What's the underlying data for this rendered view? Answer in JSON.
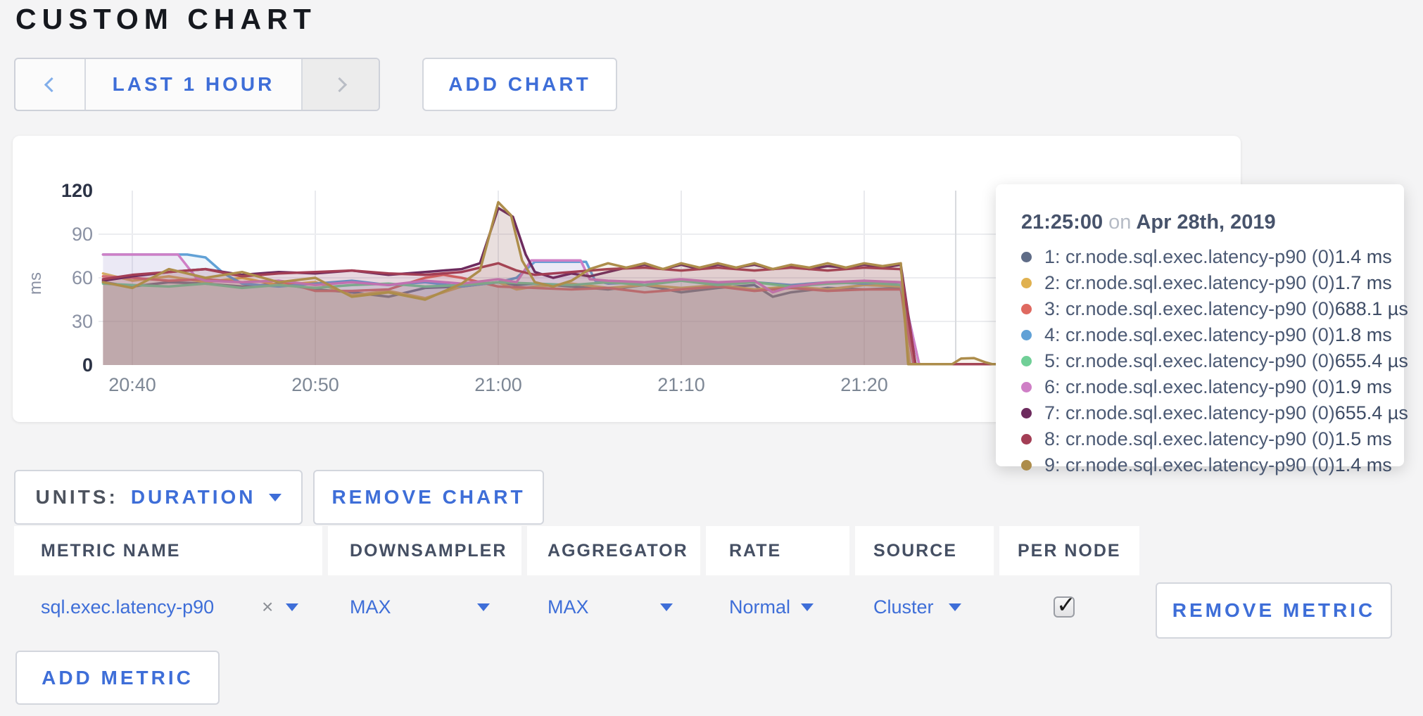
{
  "page": {
    "title": "CUSTOM CHART",
    "background": "#f4f4f5",
    "accent": "#3e6ed8"
  },
  "toolbar": {
    "range_label": "LAST 1 HOUR",
    "prev_icon": "chevron-left",
    "next_icon": "chevron-right",
    "add_chart_label": "ADD CHART"
  },
  "chart_data": {
    "type": "area",
    "title": "",
    "ylabel": "ms",
    "ylim": [
      0,
      120
    ],
    "yticks": [
      0,
      30,
      60,
      90,
      120
    ],
    "grid": true,
    "legend_position": "tooltip",
    "xticks": [
      {
        "min": 40,
        "label": "20:40"
      },
      {
        "min": 50,
        "label": "20:50"
      },
      {
        "min": 60,
        "label": "21:00"
      },
      {
        "min": 70,
        "label": "21:10"
      },
      {
        "min": 80,
        "label": "21:20"
      }
    ],
    "x_domain_minutes_after_2000": [
      38.4,
      100
    ],
    "crosshair_min": 85,
    "series": [
      {
        "name": "1: cr.node.sql.exec.latency-p90 (0)",
        "color": "#5f6c87",
        "points": [
          [
            38.4,
            57
          ],
          [
            40,
            54
          ],
          [
            42,
            57
          ],
          [
            44,
            56
          ],
          [
            46,
            54
          ],
          [
            48,
            56
          ],
          [
            50,
            52
          ],
          [
            52,
            50
          ],
          [
            54,
            47
          ],
          [
            56,
            53
          ],
          [
            58,
            54
          ],
          [
            60,
            57
          ],
          [
            61,
            55
          ],
          [
            62,
            56
          ],
          [
            64,
            54
          ],
          [
            66,
            52
          ],
          [
            68,
            55
          ],
          [
            70,
            50
          ],
          [
            72,
            53
          ],
          [
            74,
            55
          ],
          [
            75,
            47
          ],
          [
            76,
            50
          ],
          [
            78,
            53
          ],
          [
            80,
            52
          ],
          [
            82,
            53
          ],
          [
            82.7,
            0.6
          ],
          [
            88,
            0.6
          ]
        ]
      },
      {
        "name": "2: cr.node.sql.exec.latency-p90 (0)",
        "color": "#e0b150",
        "points": [
          [
            38.4,
            63
          ],
          [
            40,
            58
          ],
          [
            42,
            61
          ],
          [
            44,
            57
          ],
          [
            46,
            60
          ],
          [
            48,
            55
          ],
          [
            50,
            57
          ],
          [
            52,
            48
          ],
          [
            54,
            51
          ],
          [
            56,
            46
          ],
          [
            58,
            54
          ],
          [
            60,
            57
          ],
          [
            61,
            52
          ],
          [
            62,
            54
          ],
          [
            64,
            56
          ],
          [
            66,
            53
          ],
          [
            68,
            55
          ],
          [
            70,
            53
          ],
          [
            72,
            55
          ],
          [
            74,
            52
          ],
          [
            76,
            54
          ],
          [
            78,
            52
          ],
          [
            80,
            55
          ],
          [
            82,
            54
          ],
          [
            82.5,
            0.6
          ],
          [
            88,
            0.6
          ]
        ]
      },
      {
        "name": "3: cr.node.sql.exec.latency-p90 (0)",
        "color": "#df6960",
        "points": [
          [
            38.4,
            61
          ],
          [
            40,
            60
          ],
          [
            42,
            58
          ],
          [
            44,
            59
          ],
          [
            46,
            57
          ],
          [
            48,
            58
          ],
          [
            50,
            51
          ],
          [
            52,
            51
          ],
          [
            54,
            52
          ],
          [
            55,
            56
          ],
          [
            56,
            60
          ],
          [
            57,
            62
          ],
          [
            58,
            60
          ],
          [
            59,
            57
          ],
          [
            60,
            54
          ],
          [
            62,
            53
          ],
          [
            64,
            52
          ],
          [
            66,
            53
          ],
          [
            68,
            50
          ],
          [
            70,
            52
          ],
          [
            72,
            54
          ],
          [
            74,
            51
          ],
          [
            76,
            53
          ],
          [
            78,
            51
          ],
          [
            80,
            52
          ],
          [
            82,
            52
          ],
          [
            82.7,
            0.6
          ],
          [
            88,
            0.6
          ]
        ]
      },
      {
        "name": "4: cr.node.sql.exec.latency-p90 (0)",
        "color": "#61a1d6",
        "points": [
          [
            38.4,
            76
          ],
          [
            43,
            76
          ],
          [
            44,
            74
          ],
          [
            45,
            63
          ],
          [
            46,
            56
          ],
          [
            48,
            54
          ],
          [
            50,
            56
          ],
          [
            52,
            58
          ],
          [
            54,
            55
          ],
          [
            56,
            57
          ],
          [
            58,
            54
          ],
          [
            60,
            57
          ],
          [
            61,
            60
          ],
          [
            62,
            71
          ],
          [
            64.8,
            71
          ],
          [
            65.3,
            58
          ],
          [
            66,
            56
          ],
          [
            68,
            57
          ],
          [
            70,
            58
          ],
          [
            72,
            56
          ],
          [
            74,
            57
          ],
          [
            76,
            55
          ],
          [
            78,
            57
          ],
          [
            80,
            56
          ],
          [
            82,
            57
          ],
          [
            83,
            0.6
          ],
          [
            88,
            0.6
          ]
        ]
      },
      {
        "name": "5: cr.node.sql.exec.latency-p90 (0)",
        "color": "#70cf97",
        "points": [
          [
            38.4,
            56
          ],
          [
            40,
            55
          ],
          [
            42,
            54
          ],
          [
            44,
            56
          ],
          [
            46,
            53
          ],
          [
            48,
            55
          ],
          [
            50,
            53
          ],
          [
            52,
            55
          ],
          [
            54,
            56
          ],
          [
            56,
            54
          ],
          [
            58,
            55
          ],
          [
            60,
            57
          ],
          [
            62,
            56
          ],
          [
            64,
            55
          ],
          [
            66,
            57
          ],
          [
            68,
            55
          ],
          [
            70,
            58
          ],
          [
            72,
            55
          ],
          [
            74,
            57
          ],
          [
            76,
            54
          ],
          [
            78,
            56
          ],
          [
            80,
            57
          ],
          [
            82,
            55
          ],
          [
            83,
            0.6
          ],
          [
            88,
            0.6
          ]
        ]
      },
      {
        "name": "6: cr.node.sql.exec.latency-p90 (0)",
        "color": "#cf7fc6",
        "points": [
          [
            38.4,
            76
          ],
          [
            42.5,
            76
          ],
          [
            43.5,
            60
          ],
          [
            44,
            58
          ],
          [
            46,
            57
          ],
          [
            48,
            58
          ],
          [
            50,
            55
          ],
          [
            52,
            57
          ],
          [
            54,
            55
          ],
          [
            56,
            58
          ],
          [
            58,
            56
          ],
          [
            60,
            59
          ],
          [
            61,
            57
          ],
          [
            61.8,
            72
          ],
          [
            64.5,
            72
          ],
          [
            65,
            59
          ],
          [
            66,
            58
          ],
          [
            68,
            57
          ],
          [
            70,
            59
          ],
          [
            72,
            57
          ],
          [
            74,
            58
          ],
          [
            75,
            50
          ],
          [
            76,
            54
          ],
          [
            78,
            57
          ],
          [
            80,
            58
          ],
          [
            82,
            57
          ],
          [
            83,
            0.6
          ],
          [
            88,
            0.6
          ]
        ]
      },
      {
        "name": "7: cr.node.sql.exec.latency-p90 (0)",
        "color": "#6d2b5e",
        "points": [
          [
            38.4,
            58
          ],
          [
            40,
            61
          ],
          [
            42,
            64
          ],
          [
            44,
            66
          ],
          [
            46,
            62
          ],
          [
            48,
            64
          ],
          [
            50,
            63
          ],
          [
            52,
            65
          ],
          [
            54,
            62
          ],
          [
            56,
            64
          ],
          [
            58,
            66
          ],
          [
            59,
            70
          ],
          [
            60,
            108
          ],
          [
            60.8,
            102
          ],
          [
            61.5,
            76
          ],
          [
            62,
            64
          ],
          [
            63,
            60
          ],
          [
            64,
            63
          ],
          [
            65,
            61
          ],
          [
            66,
            64
          ],
          [
            67,
            67
          ],
          [
            68,
            69
          ],
          [
            69,
            66
          ],
          [
            70,
            69
          ],
          [
            71,
            66
          ],
          [
            72,
            69
          ],
          [
            73,
            67
          ],
          [
            74,
            69
          ],
          [
            75,
            66
          ],
          [
            76,
            68
          ],
          [
            77,
            66
          ],
          [
            78,
            68
          ],
          [
            79,
            67
          ],
          [
            80,
            69
          ],
          [
            81,
            67
          ],
          [
            82,
            69
          ],
          [
            82.8,
            0.6
          ],
          [
            88,
            0.6
          ]
        ]
      },
      {
        "name": "8: cr.node.sql.exec.latency-p90 (0)",
        "color": "#a33e55",
        "points": [
          [
            38.4,
            59
          ],
          [
            40,
            62
          ],
          [
            42,
            64
          ],
          [
            44,
            66
          ],
          [
            46,
            61
          ],
          [
            48,
            63
          ],
          [
            50,
            64
          ],
          [
            52,
            65
          ],
          [
            54,
            63
          ],
          [
            56,
            62
          ],
          [
            58,
            64
          ],
          [
            59,
            67
          ],
          [
            60,
            70
          ],
          [
            61,
            65
          ],
          [
            62,
            62
          ],
          [
            64,
            64
          ],
          [
            66,
            66
          ],
          [
            68,
            67
          ],
          [
            70,
            65
          ],
          [
            72,
            67
          ],
          [
            74,
            65
          ],
          [
            76,
            67
          ],
          [
            78,
            65
          ],
          [
            80,
            67
          ],
          [
            82,
            66
          ],
          [
            82.8,
            0.6
          ],
          [
            88,
            0.6
          ]
        ]
      },
      {
        "name": "9: cr.node.sql.exec.latency-p90 (0)",
        "color": "#ad8d4b",
        "points": [
          [
            38.4,
            57
          ],
          [
            40,
            53
          ],
          [
            42,
            66
          ],
          [
            44,
            60
          ],
          [
            46,
            64
          ],
          [
            48,
            57
          ],
          [
            50,
            60
          ],
          [
            52,
            47
          ],
          [
            54,
            50
          ],
          [
            56,
            45
          ],
          [
            58,
            56
          ],
          [
            59,
            65
          ],
          [
            60,
            112
          ],
          [
            60.7,
            103
          ],
          [
            61.3,
            72
          ],
          [
            62,
            57
          ],
          [
            63,
            54
          ],
          [
            64,
            58
          ],
          [
            65,
            66
          ],
          [
            66,
            70
          ],
          [
            67,
            67
          ],
          [
            68,
            70
          ],
          [
            69,
            66
          ],
          [
            70,
            70
          ],
          [
            71,
            67
          ],
          [
            72,
            70
          ],
          [
            73,
            67
          ],
          [
            74,
            70
          ],
          [
            75,
            66
          ],
          [
            76,
            69
          ],
          [
            77,
            67
          ],
          [
            78,
            70
          ],
          [
            79,
            67
          ],
          [
            80,
            70
          ],
          [
            81,
            68
          ],
          [
            82,
            70
          ],
          [
            82.4,
            0.6
          ],
          [
            84.8,
            0.6
          ],
          [
            85.3,
            4.5
          ],
          [
            86,
            4.8
          ],
          [
            86.6,
            2
          ],
          [
            87,
            0.6
          ],
          [
            88,
            0.6
          ]
        ]
      }
    ]
  },
  "tooltip": {
    "time": "21:25:00",
    "on_word": "on",
    "date": "Apr 28th, 2019",
    "rows": [
      {
        "label": "1: cr.node.sql.exec.latency-p90 (0)",
        "value": "1.4 ms"
      },
      {
        "label": "2: cr.node.sql.exec.latency-p90 (0)",
        "value": "1.7 ms"
      },
      {
        "label": "3: cr.node.sql.exec.latency-p90 (0)",
        "value": "688.1 µs"
      },
      {
        "label": "4: cr.node.sql.exec.latency-p90 (0)",
        "value": "1.8 ms"
      },
      {
        "label": "5: cr.node.sql.exec.latency-p90 (0)",
        "value": "655.4 µs"
      },
      {
        "label": "6: cr.node.sql.exec.latency-p90 (0)",
        "value": "1.9 ms"
      },
      {
        "label": "7: cr.node.sql.exec.latency-p90 (0)",
        "value": "655.4 µs"
      },
      {
        "label": "8: cr.node.sql.exec.latency-p90 (0)",
        "value": "1.5 ms"
      },
      {
        "label": "9: cr.node.sql.exec.latency-p90 (0)",
        "value": "1.4 ms"
      }
    ]
  },
  "controls": {
    "units_label": "UNITS:",
    "units_value": "DURATION",
    "remove_chart_label": "REMOVE CHART",
    "add_metric_label": "ADD METRIC"
  },
  "table": {
    "headers": [
      "METRIC NAME",
      "DOWNSAMPLER",
      "AGGREGATOR",
      "RATE",
      "SOURCE",
      "PER NODE"
    ],
    "row": {
      "metric_name": "sql.exec.latency-p90",
      "clear_icon": "×",
      "downsampler": "MAX",
      "aggregator": "MAX",
      "rate": "Normal",
      "source": "Cluster",
      "per_node_checked": true,
      "check_glyph": "✓",
      "remove_metric_label": "REMOVE METRIC"
    }
  }
}
